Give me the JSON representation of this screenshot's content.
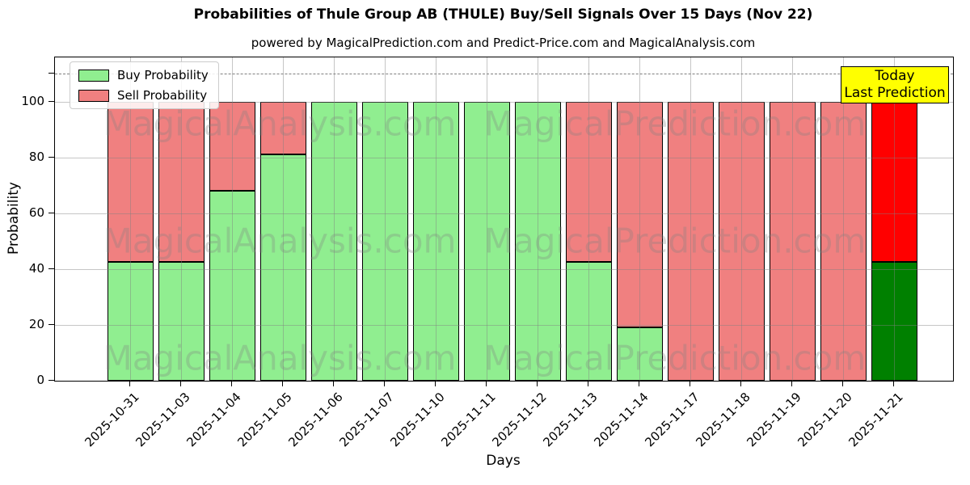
{
  "title": "Probabilities of Thule Group AB (THULE) Buy/Sell Signals Over 15 Days (Nov 22)",
  "subtitle": "powered by MagicalPrediction.com and Predict-Price.com and MagicalAnalysis.com",
  "axes": {
    "xlabel": "Days",
    "ylabel": "Probability",
    "yticks": [
      0,
      20,
      40,
      60,
      80,
      100
    ],
    "ylim": [
      0,
      115.8
    ],
    "dashed_line_y": 110,
    "grid": "on"
  },
  "legend": {
    "position": "upper-left",
    "items": [
      {
        "label": "Buy Probability",
        "color": "#90ee90"
      },
      {
        "label": "Sell Probability",
        "color": "#f08080"
      }
    ]
  },
  "annotation": {
    "line1": "Today",
    "line2": "Last Prediction",
    "bg_color": "#ffff00"
  },
  "watermarks": [
    "MagicalAnalysis.com",
    "MagicalPrediction.com"
  ],
  "chart_data": {
    "type": "bar",
    "stacked": true,
    "title": "Probabilities of Thule Group AB (THULE) Buy/Sell Signals Over 15 Days (Nov 22)",
    "xlabel": "Days",
    "ylabel": "Probability",
    "ylim": [
      0,
      115.8
    ],
    "categories": [
      "2025-10-31",
      "2025-11-03",
      "2025-11-04",
      "2025-11-05",
      "2025-11-06",
      "2025-11-07",
      "2025-11-10",
      "2025-11-11",
      "2025-11-12",
      "2025-11-13",
      "2025-11-14",
      "2025-11-17",
      "2025-11-18",
      "2025-11-19",
      "2025-11-20",
      "2025-11-21"
    ],
    "series": [
      {
        "name": "Buy Probability",
        "color": "#90ee90",
        "today_color": "#008000",
        "values": [
          42.5,
          42.5,
          68,
          81,
          100,
          100,
          100,
          100,
          100,
          42.5,
          19,
          0,
          0,
          0,
          0,
          42.5
        ]
      },
      {
        "name": "Sell Probability",
        "color": "#f08080",
        "today_color": "#ff0000",
        "values": [
          57.5,
          57.5,
          32,
          19,
          0,
          0,
          0,
          0,
          0,
          57.5,
          81,
          100,
          100,
          100,
          100,
          57.5
        ]
      }
    ],
    "today_index": 15,
    "bar_edge_color": "#000000"
  }
}
